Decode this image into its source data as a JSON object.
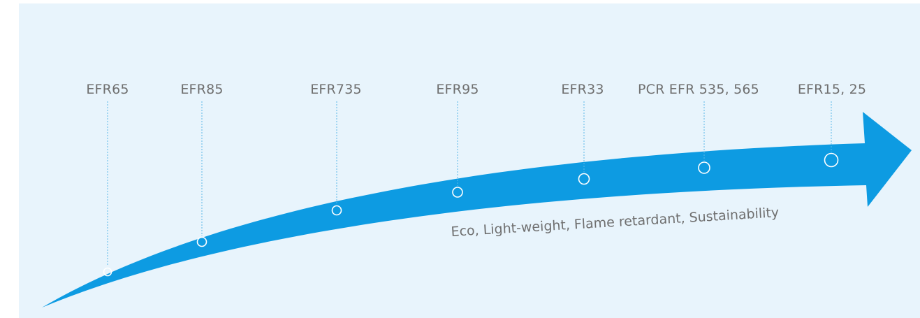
{
  "timeline": {
    "caption": "Eco, Light-weight, Flame retardant, Sustainability",
    "milestones": [
      {
        "label": "EFR65"
      },
      {
        "label": "EFR85"
      },
      {
        "label": "EFR735"
      },
      {
        "label": "EFR95"
      },
      {
        "label": "EFR33"
      },
      {
        "label": "PCR EFR 535, 565"
      },
      {
        "label": "EFR15, 25"
      }
    ]
  },
  "colors": {
    "arrow": "#0d9be2",
    "background": "#e8f4fc",
    "label_text": "#6f6f6f",
    "guide_line": "#5bb8e8",
    "marker": "#ffffff"
  }
}
